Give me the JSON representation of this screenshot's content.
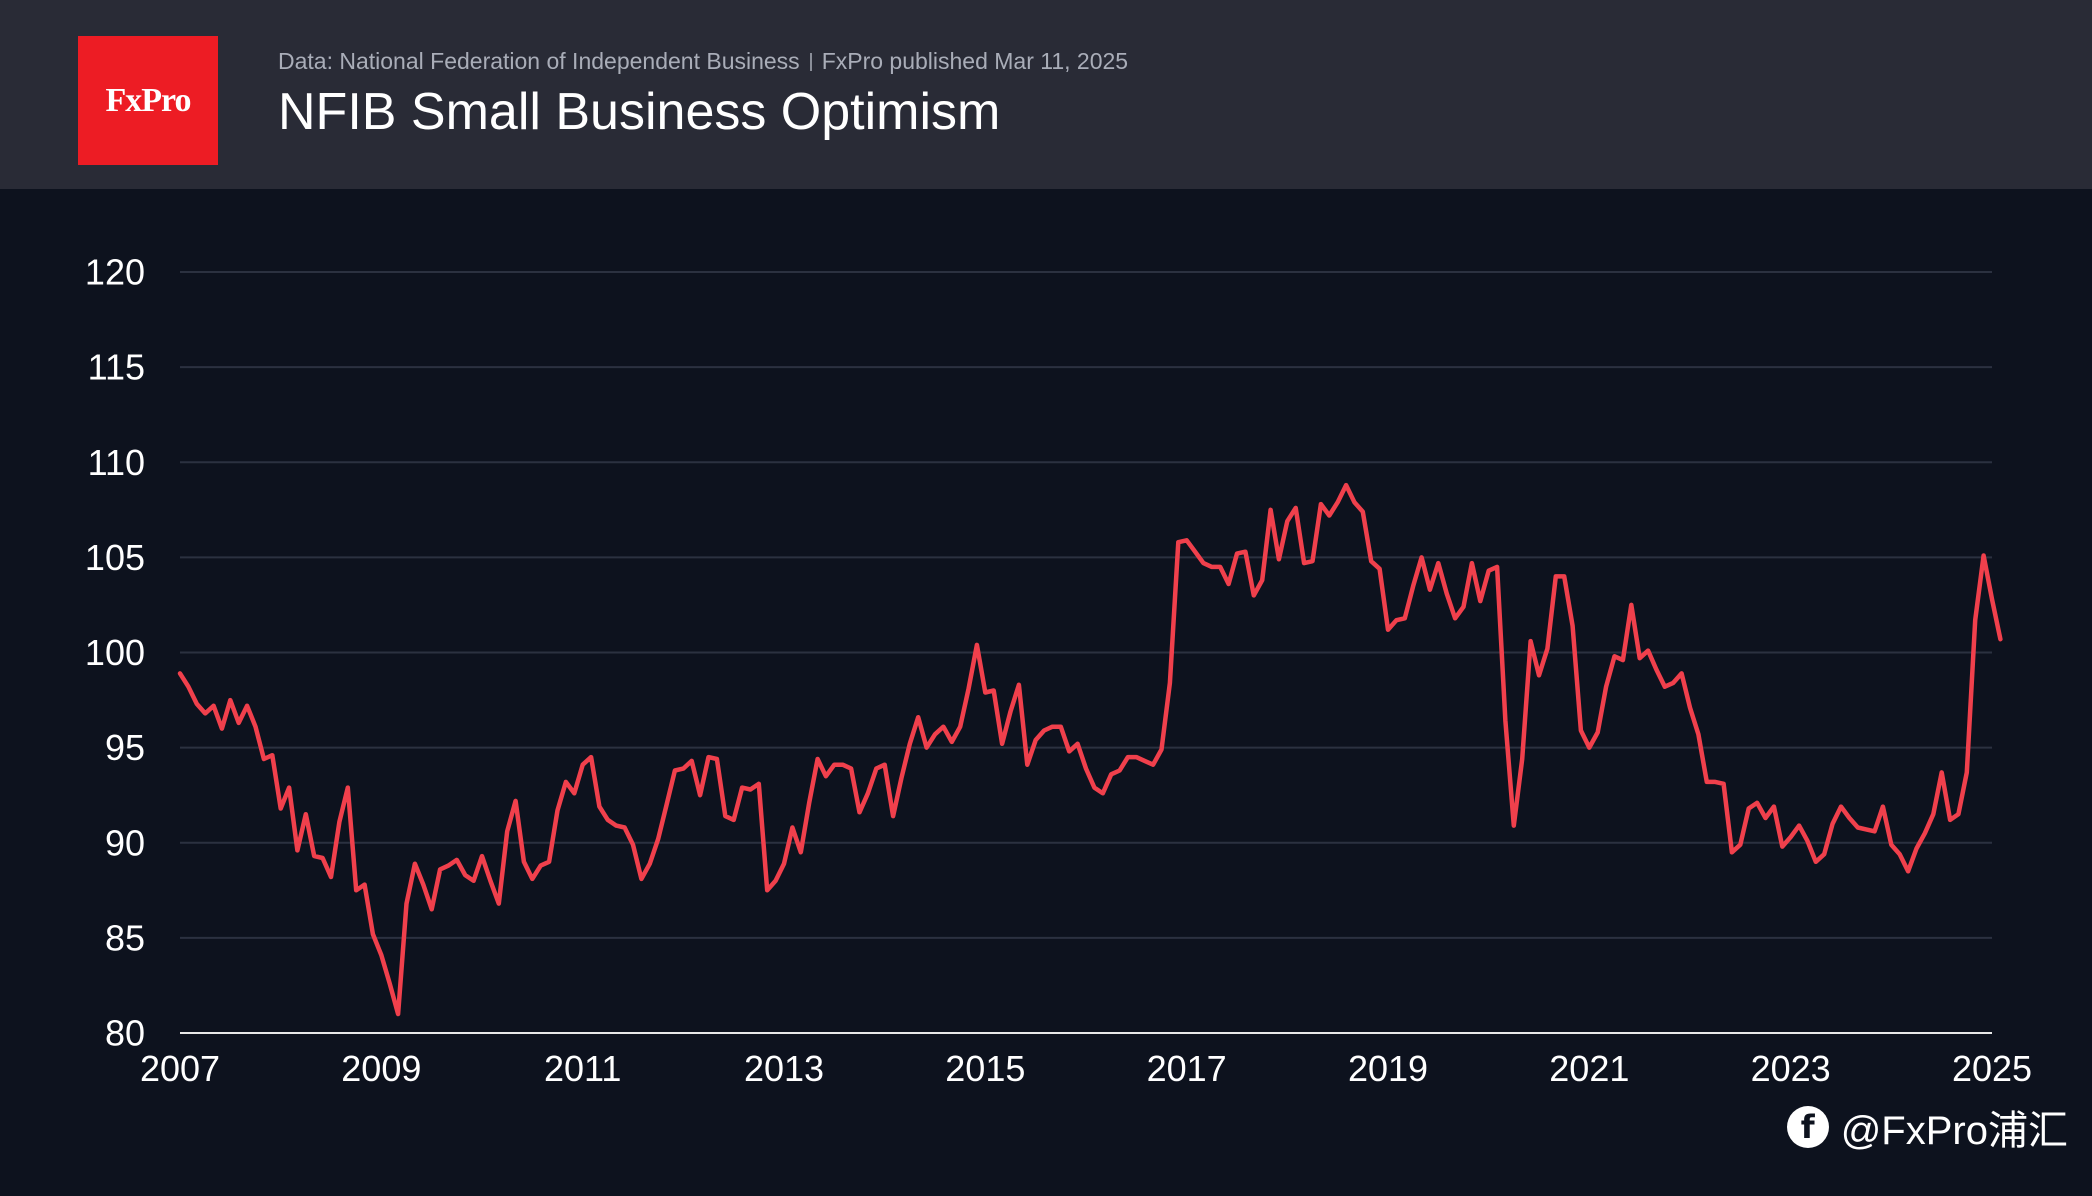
{
  "header": {
    "logo": "FxPro",
    "source": "Data: National Federation of Independent Business",
    "published": "FxPro published Mar 11, 2025",
    "title": "NFIB Small Business Optimism"
  },
  "watermark": {
    "icon": "facebook-icon",
    "text": "@FxPro浦汇"
  },
  "colors": {
    "background": "#0d121e",
    "header_bg": "#292b36",
    "brand_red": "#ed1c24",
    "line": "#f0404c",
    "grid": "#2b3140"
  },
  "chart_data": {
    "type": "line",
    "title": "NFIB Small Business Optimism",
    "xlabel": "",
    "ylabel": "",
    "ylim": [
      80,
      120
    ],
    "yticks": [
      80,
      85,
      90,
      95,
      100,
      105,
      110,
      115,
      120
    ],
    "xlim": [
      2007,
      2025
    ],
    "xticks": [
      "2007",
      "2009",
      "2011",
      "2013",
      "2015",
      "2017",
      "2019",
      "2021",
      "2023",
      "2025"
    ],
    "grid": true,
    "legend": "none",
    "series": [
      {
        "x_start": "2007-01",
        "frequency": "monthly",
        "values": [
          98.9,
          98.2,
          97.3,
          96.8,
          97.2,
          96.0,
          97.5,
          96.3,
          97.2,
          96.1,
          94.4,
          94.6,
          91.8,
          92.9,
          89.6,
          91.5,
          89.3,
          89.2,
          88.2,
          91.1,
          92.9,
          87.5,
          87.8,
          85.2,
          84.1,
          82.6,
          81.0,
          86.8,
          88.9,
          87.8,
          86.5,
          88.6,
          88.8,
          89.1,
          88.3,
          88.0,
          89.3,
          88.0,
          86.8,
          90.6,
          92.2,
          89.0,
          88.1,
          88.8,
          89.0,
          91.7,
          93.2,
          92.6,
          94.1,
          94.5,
          91.9,
          91.2,
          90.9,
          90.8,
          89.9,
          88.1,
          88.9,
          90.2,
          92.0,
          93.8,
          93.9,
          94.3,
          92.5,
          94.5,
          94.4,
          91.4,
          91.2,
          92.9,
          92.8,
          93.1,
          87.5,
          88.0,
          88.9,
          90.8,
          89.5,
          92.1,
          94.4,
          93.5,
          94.1,
          94.1,
          93.9,
          91.6,
          92.6,
          93.9,
          94.1,
          91.4,
          93.4,
          95.2,
          96.6,
          95.0,
          95.7,
          96.1,
          95.3,
          96.1,
          98.1,
          100.4,
          97.9,
          98.0,
          95.2,
          96.9,
          98.3,
          94.1,
          95.4,
          95.9,
          96.1,
          96.1,
          94.8,
          95.2,
          93.9,
          92.9,
          92.6,
          93.6,
          93.8,
          94.5,
          94.5,
          94.3,
          94.1,
          94.9,
          98.4,
          105.8,
          105.9,
          105.3,
          104.7,
          104.5,
          104.5,
          103.6,
          105.2,
          105.3,
          103.0,
          103.8,
          107.5,
          104.9,
          106.9,
          107.6,
          104.7,
          104.8,
          107.8,
          107.2,
          107.9,
          108.8,
          107.9,
          107.4,
          104.8,
          104.4,
          101.2,
          101.7,
          101.8,
          103.5,
          105.0,
          103.3,
          104.7,
          103.1,
          101.8,
          102.4,
          104.7,
          102.7,
          104.3,
          104.5,
          96.4,
          90.9,
          94.4,
          100.6,
          98.8,
          100.2,
          104.0,
          104.0,
          101.4,
          95.9,
          95.0,
          95.8,
          98.2,
          99.8,
          99.6,
          102.5,
          99.7,
          100.1,
          99.1,
          98.2,
          98.4,
          98.9,
          97.1,
          95.7,
          93.2,
          93.2,
          93.1,
          89.5,
          89.9,
          91.8,
          92.1,
          91.3,
          91.9,
          89.8,
          90.3,
          90.9,
          90.1,
          89.0,
          89.4,
          91.0,
          91.9,
          91.3,
          90.8,
          90.7,
          90.6,
          91.9,
          89.9,
          89.4,
          88.5,
          89.7,
          90.5,
          91.5,
          93.7,
          91.2,
          91.5,
          93.7,
          101.7,
          105.1,
          102.8,
          100.7
        ]
      }
    ]
  }
}
